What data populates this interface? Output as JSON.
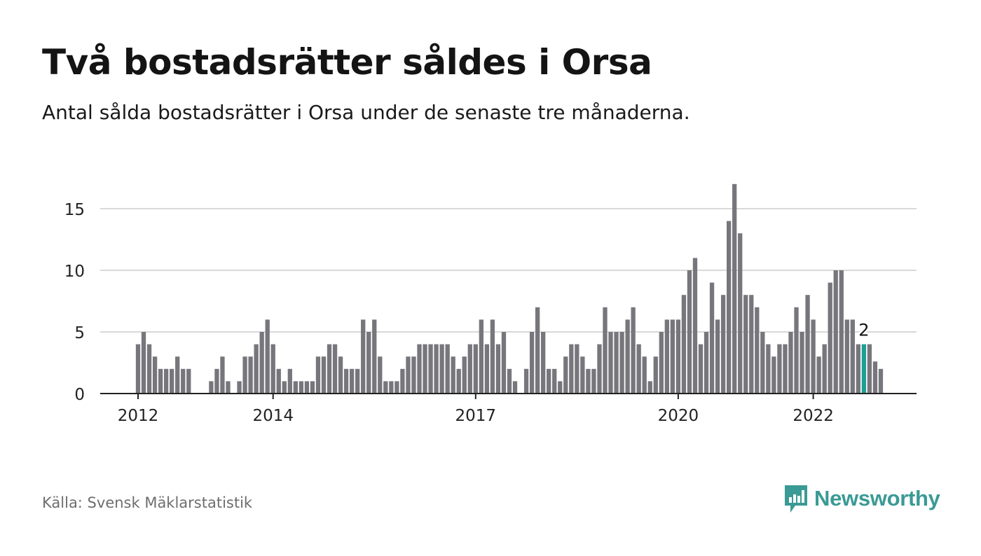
{
  "title": "Två bostadsrätter såldes i Orsa",
  "subtitle": "Antal sålda bostadsrätter i Orsa under de senaste tre månaderna.",
  "source": "Källa: Svensk Mäklarstatistik",
  "brand": {
    "name": "Newsworthy",
    "color": "#3a9a95",
    "icon": "newsworthy-logo-icon"
  },
  "colors": {
    "bar": "#77767c",
    "highlight": "#1b9e93",
    "grid": "#d9d9d9",
    "axis": "#222222"
  },
  "chart_data": {
    "type": "bar",
    "title": "Två bostadsrätter såldes i Orsa",
    "xlabel": "",
    "ylabel": "",
    "ylim": [
      0,
      17
    ],
    "yticks": [
      0,
      5,
      10,
      15
    ],
    "grid": true,
    "x_start": "2012-01",
    "x_end": "2022-10",
    "xtick_labels": [
      {
        "label": "2012",
        "month": "2012-01"
      },
      {
        "label": "2014",
        "month": "2014-01"
      },
      {
        "label": "2017",
        "month": "2017-01"
      },
      {
        "label": "2020",
        "month": "2020-01"
      },
      {
        "label": "2022",
        "month": "2022-01"
      }
    ],
    "highlight_month": "2022-10",
    "highlight_label": "2",
    "values": [
      4,
      5,
      4,
      3,
      2,
      2,
      2,
      3,
      2,
      2,
      0,
      0,
      0,
      1,
      2,
      3,
      1,
      0,
      1,
      3,
      3,
      4,
      5,
      6,
      4,
      2,
      1,
      2,
      1,
      1,
      1,
      1,
      3,
      3,
      4,
      4,
      3,
      2,
      2,
      2,
      6,
      5,
      6,
      3,
      1,
      1,
      1,
      2,
      3,
      3,
      4,
      4,
      4,
      4,
      4,
      4,
      3,
      2,
      3,
      4,
      4,
      6,
      4,
      6,
      4,
      5,
      2,
      1,
      0,
      2,
      5,
      7,
      5,
      2,
      2,
      1,
      3,
      4,
      4,
      3,
      2,
      2,
      4,
      7,
      5,
      5,
      5,
      6,
      7,
      4,
      3,
      1,
      3,
      5,
      6,
      6,
      6,
      8,
      10,
      11,
      4,
      5,
      9,
      6,
      8,
      14,
      17,
      13,
      8,
      8,
      7,
      5,
      4,
      3,
      4,
      4,
      5,
      7,
      5,
      8,
      6,
      3,
      4,
      9,
      10,
      10,
      6,
      6,
      4,
      4,
      4,
      2.6,
      2
    ]
  }
}
